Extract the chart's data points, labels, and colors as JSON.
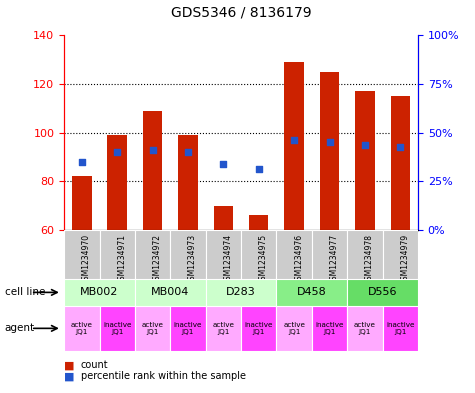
{
  "title": "GDS5346 / 8136179",
  "samples": [
    "GSM1234970",
    "GSM1234971",
    "GSM1234972",
    "GSM1234973",
    "GSM1234974",
    "GSM1234975",
    "GSM1234976",
    "GSM1234977",
    "GSM1234978",
    "GSM1234979"
  ],
  "bar_heights": [
    82,
    99,
    109,
    99,
    70,
    66,
    129,
    125,
    117,
    115
  ],
  "bar_bottom": 60,
  "blue_dot_left_vals": [
    88,
    92,
    93,
    92,
    87,
    85,
    97,
    96,
    95,
    94
  ],
  "ylim_left": [
    60,
    140
  ],
  "ylim_right": [
    0,
    100
  ],
  "yticks_left": [
    60,
    80,
    100,
    120,
    140
  ],
  "ytick_labels_left": [
    "60",
    "80",
    "100",
    "120",
    "140"
  ],
  "yticks_right_pct": [
    0,
    25,
    50,
    75,
    100
  ],
  "ytick_labels_right": [
    "0%",
    "25%",
    "50%",
    "75%",
    "100%"
  ],
  "bar_color": "#cc2200",
  "blue_color": "#2255cc",
  "cell_lines": [
    {
      "label": "MB002",
      "span": [
        0,
        2
      ],
      "color": "#ccffcc"
    },
    {
      "label": "MB004",
      "span": [
        2,
        4
      ],
      "color": "#ccffcc"
    },
    {
      "label": "D283",
      "span": [
        4,
        6
      ],
      "color": "#ccffcc"
    },
    {
      "label": "D458",
      "span": [
        6,
        8
      ],
      "color": "#88ee88"
    },
    {
      "label": "D556",
      "span": [
        8,
        10
      ],
      "color": "#66dd66"
    }
  ],
  "agents": [
    {
      "label": "active\nJQ1",
      "idx": 0,
      "color": "#ffaaff"
    },
    {
      "label": "inactive\nJQ1",
      "idx": 1,
      "color": "#ff44ff"
    },
    {
      "label": "active\nJQ1",
      "idx": 2,
      "color": "#ffaaff"
    },
    {
      "label": "inactive\nJQ1",
      "idx": 3,
      "color": "#ff44ff"
    },
    {
      "label": "active\nJQ1",
      "idx": 4,
      "color": "#ffaaff"
    },
    {
      "label": "inactive\nJQ1",
      "idx": 5,
      "color": "#ff44ff"
    },
    {
      "label": "active\nJQ1",
      "idx": 6,
      "color": "#ffaaff"
    },
    {
      "label": "inactive\nJQ1",
      "idx": 7,
      "color": "#ff44ff"
    },
    {
      "label": "active\nJQ1",
      "idx": 8,
      "color": "#ffaaff"
    },
    {
      "label": "inactive\nJQ1",
      "idx": 9,
      "color": "#ff44ff"
    }
  ],
  "legend_items": [
    {
      "label": "count",
      "color": "#cc2200"
    },
    {
      "label": "percentile rank within the sample",
      "color": "#2255cc"
    }
  ],
  "background_color": "#ffffff",
  "sample_bg_color": "#cccccc",
  "grid_yticks": [
    80,
    100,
    120
  ]
}
